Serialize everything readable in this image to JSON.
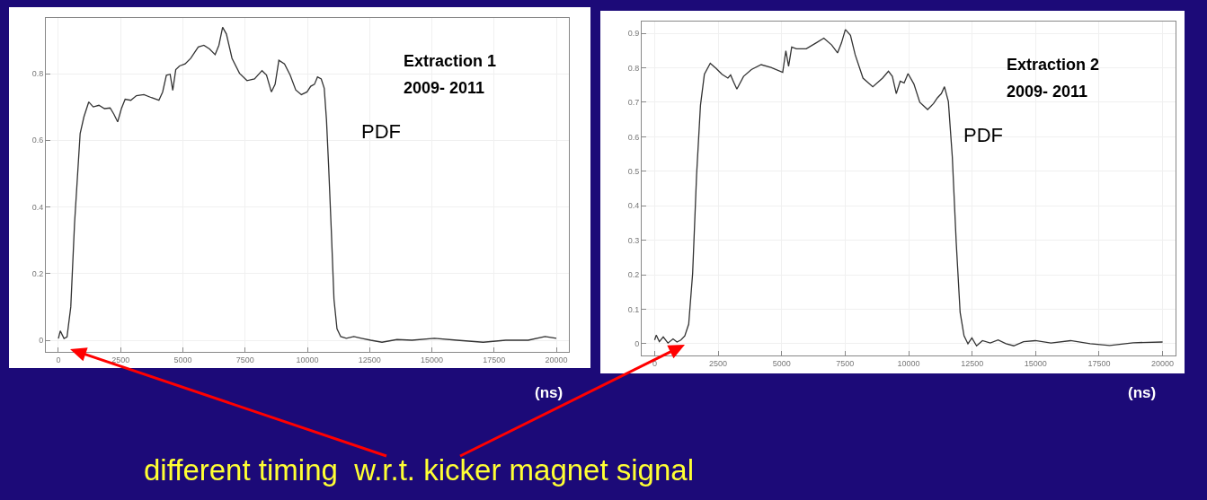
{
  "chart_data": [
    {
      "type": "line",
      "xlabel": "(ns)",
      "annotations": [
        "Extraction 1",
        "2009- 2011",
        "PDF",
        "different timing  w.r.t. kicker magnet signal"
      ],
      "xlim": [
        -505,
        20505
      ],
      "ylim": [
        -0.035,
        0.967
      ],
      "xticks": [
        0,
        2500,
        5000,
        7500,
        10000,
        12500,
        15000,
        17500,
        20000
      ],
      "yticks": [
        0,
        0.2,
        0.4,
        0.6,
        0.8
      ],
      "grid": true,
      "marker": "none",
      "line_style": "solid",
      "series": [
        {
          "color": "#333333",
          "x": [
            0,
            75,
            226,
            346,
            497,
            648,
            873,
            1024,
            1220,
            1400,
            1626,
            1852,
            2078,
            2229,
            2380,
            2530,
            2681,
            2907,
            3133,
            3434,
            3735,
            4036,
            4187,
            4337,
            4488,
            4593,
            4714,
            4864,
            5090,
            5316,
            5617,
            5843,
            6069,
            6295,
            6446,
            6596,
            6747,
            6973,
            7274,
            7575,
            7877,
            8178,
            8358,
            8554,
            8705,
            8855,
            9081,
            9307,
            9533,
            9759,
            9985,
            10136,
            10286,
            10407,
            10557,
            10678,
            10768,
            10858,
            10964,
            11069,
            11190,
            11340,
            11566,
            11867,
            12169,
            12545,
            12997,
            13599,
            14202,
            15105,
            16009,
            17063,
            17967,
            18871,
            19548,
            20000
          ],
          "values": [
            0.005,
            0.028,
            0.005,
            0.01,
            0.1,
            0.35,
            0.62,
            0.67,
            0.715,
            0.7,
            0.705,
            0.695,
            0.697,
            0.678,
            0.655,
            0.695,
            0.723,
            0.72,
            0.734,
            0.737,
            0.728,
            0.72,
            0.745,
            0.795,
            0.798,
            0.75,
            0.812,
            0.823,
            0.829,
            0.846,
            0.88,
            0.885,
            0.874,
            0.857,
            0.885,
            0.939,
            0.919,
            0.846,
            0.801,
            0.779,
            0.784,
            0.809,
            0.796,
            0.745,
            0.768,
            0.84,
            0.829,
            0.796,
            0.751,
            0.737,
            0.745,
            0.762,
            0.768,
            0.79,
            0.784,
            0.756,
            0.661,
            0.515,
            0.325,
            0.123,
            0.034,
            0.011,
            0.006,
            0.011,
            0.006,
            0,
            -0.006,
            0.002,
            0,
            0.006,
            0,
            -0.006,
            0,
            0,
            0.011,
            0.006
          ]
        }
      ]
    },
    {
      "type": "line",
      "xlabel": "(ns)",
      "annotations": [
        "Extraction 2",
        "2009- 2011",
        "PDF"
      ],
      "xlim": [
        -510,
        20510
      ],
      "ylim": [
        -0.034,
        0.934
      ],
      "xticks": [
        0,
        2500,
        5000,
        7500,
        10000,
        12500,
        15000,
        17500,
        20000
      ],
      "yticks": [
        0,
        0.1,
        0.2,
        0.3,
        0.4,
        0.5,
        0.6,
        0.7,
        0.8,
        0.9
      ],
      "grid": true,
      "marker": "none",
      "line_style": "solid",
      "series": [
        {
          "color": "#333333",
          "x": [
            0,
            62,
            185,
            339,
            524,
            725,
            879,
            1033,
            1187,
            1341,
            1496,
            1650,
            1804,
            1958,
            2190,
            2421,
            2652,
            2884,
            2991,
            3115,
            3238,
            3500,
            3809,
            4194,
            4580,
            5042,
            5166,
            5274,
            5397,
            5582,
            5968,
            6353,
            6662,
            6970,
            7202,
            7356,
            7510,
            7710,
            7895,
            8204,
            8589,
            8975,
            9206,
            9360,
            9514,
            9669,
            9823,
            9977,
            10208,
            10440,
            10748,
            10980,
            11134,
            11288,
            11411,
            11565,
            11719,
            11874,
            12028,
            12182,
            12336,
            12491,
            12676,
            12907,
            13215,
            13524,
            13832,
            14140,
            14526,
            14988,
            15605,
            16376,
            17147,
            17918,
            18843,
            20000
          ],
          "values": [
            0.011,
            0.025,
            0.006,
            0.02,
            0.002,
            0.014,
            0.005,
            0.011,
            0.023,
            0.057,
            0.204,
            0.487,
            0.691,
            0.781,
            0.813,
            0.798,
            0.781,
            0.77,
            0.779,
            0.758,
            0.738,
            0.775,
            0.795,
            0.809,
            0.801,
            0.787,
            0.849,
            0.804,
            0.86,
            0.855,
            0.855,
            0.872,
            0.886,
            0.866,
            0.843,
            0.872,
            0.911,
            0.894,
            0.838,
            0.77,
            0.745,
            0.77,
            0.79,
            0.775,
            0.725,
            0.761,
            0.756,
            0.783,
            0.753,
            0.7,
            0.679,
            0.696,
            0.713,
            0.725,
            0.745,
            0.702,
            0.543,
            0.294,
            0.091,
            0.023,
            0,
            0.017,
            -0.006,
            0.009,
            0.002,
            0.011,
            0,
            -0.006,
            0.006,
            0.009,
            0.002,
            0.009,
            0,
            -0.005,
            0.003,
            0.005
          ]
        }
      ]
    }
  ]
}
